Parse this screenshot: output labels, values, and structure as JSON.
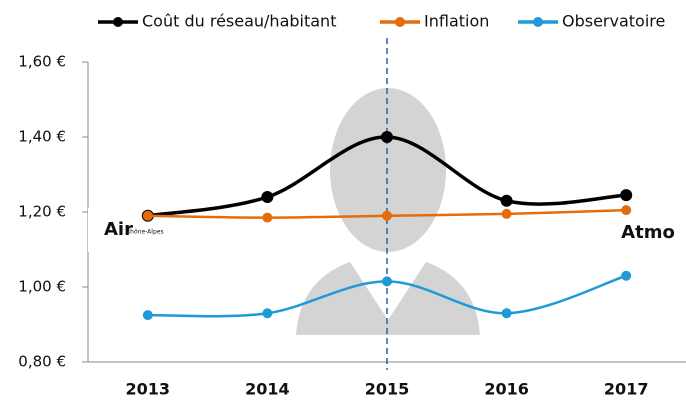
{
  "chart_data": {
    "type": "line",
    "categories": [
      "2013",
      "2014",
      "2015",
      "2016",
      "2017"
    ],
    "series": [
      {
        "name": "Coût du réseau/habitant",
        "color": "#000000",
        "values": [
          1.19,
          1.24,
          1.4,
          1.23,
          1.245
        ]
      },
      {
        "name": "Inflation",
        "color": "#e46c0a",
        "values": [
          1.19,
          1.185,
          1.19,
          1.195,
          1.205
        ]
      },
      {
        "name": "Observatoire",
        "color": "#1f9ad6",
        "values": [
          0.925,
          0.93,
          1.015,
          0.93,
          1.03
        ]
      }
    ],
    "ylim": [
      0.8,
      1.6
    ],
    "yticks": [
      {
        "value": 0.8,
        "label": "0,80 €"
      },
      {
        "value": 1.0,
        "label": "1,00 €"
      },
      {
        "value": 1.2,
        "label": "1,20 €"
      },
      {
        "value": 1.4,
        "label": "1,40 €"
      },
      {
        "value": 1.6,
        "label": "1,60 €"
      }
    ],
    "smooth": true,
    "annotations": [
      "Air",
      "Rhône-Alpes",
      "Atmo"
    ]
  }
}
